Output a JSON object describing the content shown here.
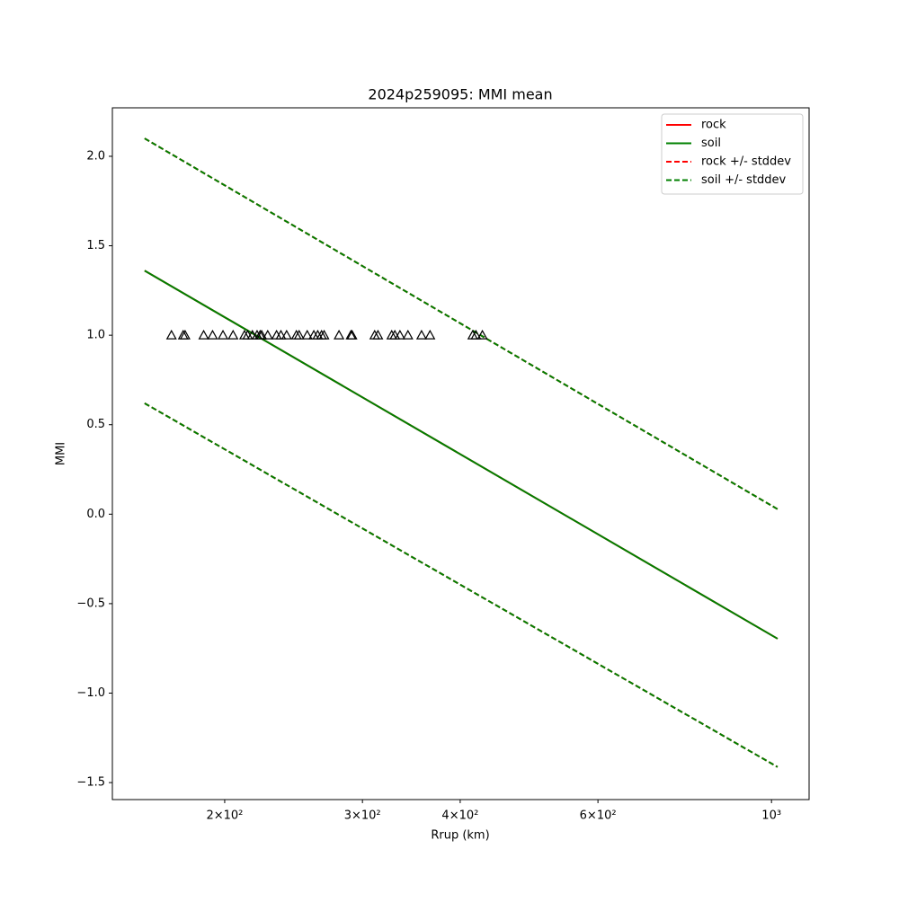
{
  "chart_data": {
    "type": "line",
    "title": "2024p259095: MMI mean",
    "xlabel": "Rrup (km)",
    "ylabel": "MMI",
    "xscale": "log",
    "xlim": [
      143.7,
      1117
    ],
    "ylim": [
      -1.595,
      2.271
    ],
    "xticks": [
      {
        "value": 200,
        "label": "2×10²"
      },
      {
        "value": 300,
        "label": "3×10²"
      },
      {
        "value": 400,
        "label": "4×10²"
      },
      {
        "value": 600,
        "label": "6×10²"
      },
      {
        "value": 1000,
        "label": "10³"
      }
    ],
    "yticks": [
      {
        "value": -1.5,
        "label": "−1.5"
      },
      {
        "value": -1,
        "label": "−1.0"
      },
      {
        "value": -0.5,
        "label": "−0.5"
      },
      {
        "value": 0,
        "label": "0.0"
      },
      0.5,
      {
        "value": 1,
        "label": "1.0"
      },
      1.5,
      {
        "value": 2,
        "label": "2.0"
      }
    ],
    "legend": "upper right",
    "series": [
      {
        "name": "rock",
        "color": "red",
        "style": "solid",
        "x": [
          158,
          1018
        ],
        "values": [
          1.361,
          -0.696
        ]
      },
      {
        "name": "soil",
        "color": "green",
        "style": "solid",
        "x": [
          158,
          1018
        ],
        "values": [
          1.361,
          -0.696
        ]
      },
      {
        "name": "rock +/- stddev",
        "color": "red",
        "style": "dashed",
        "x": [
          158,
          1018
        ],
        "values": [
          2.1,
          0.028
        ],
        "lower": [
          0.62,
          -1.413
        ]
      },
      {
        "name": "soil +/- stddev",
        "color": "green",
        "style": "dashed",
        "x": [
          158,
          1018
        ],
        "values": [
          2.1,
          0.028
        ],
        "lower": [
          0.62,
          -1.413
        ]
      }
    ],
    "points": {
      "marker": "triangle",
      "color": "black",
      "x": [
        171,
        177,
        178,
        188,
        193,
        199,
        205,
        212,
        214,
        217,
        220,
        222,
        223,
        227,
        233,
        236,
        240,
        247,
        249,
        255,
        260,
        263,
        266,
        268,
        280,
        290,
        291,
        311,
        314,
        327,
        330,
        335,
        343,
        357,
        366,
        415,
        419,
        427
      ],
      "values": [
        1,
        1,
        1,
        1,
        1,
        1,
        1,
        1,
        1,
        1,
        1,
        1,
        1,
        1,
        1,
        1,
        1,
        1,
        1,
        1,
        1,
        1,
        1,
        1,
        1,
        1,
        1,
        1,
        1,
        1,
        1,
        1,
        1,
        1,
        1,
        1,
        1,
        1
      ]
    }
  }
}
